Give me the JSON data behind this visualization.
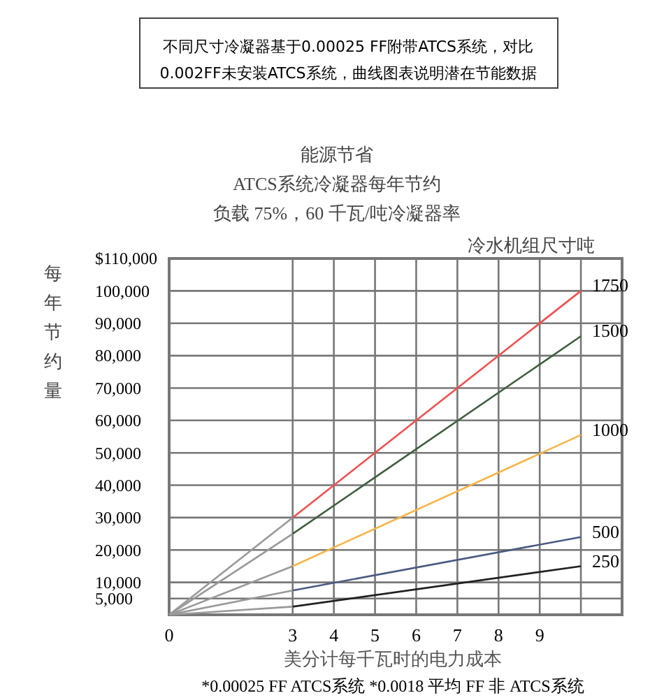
{
  "chart_data": {
    "type": "line",
    "title": "能源节省",
    "subtitle": "ATCS系统冷凝器每年节约",
    "xlabel": "美分计每千瓦时的电力成本",
    "ylabel": "每年节约量",
    "legend_title": "冷水机组尺寸吨",
    "annotations": [
      "不同尺寸冷凝器基于0.00025 FF附带ATCS系统，对比0.002FF未安装ATCS系统，曲线图表说明潜在节能数据",
      "负载 75%，60 千瓦/吨冷凝器率",
      "*0.00025 FF ATCS系统  *0.0018 平均 FF  非 ATCS系统"
    ],
    "xlim": [
      0,
      11
    ],
    "xticks": [
      0,
      3,
      4,
      5,
      6,
      7,
      8,
      9,
      {
        "value": 10,
        "label": null
      }
    ],
    "ylim": [
      0,
      110000
    ],
    "yticks": [
      {
        "value": 0,
        "label": null
      },
      {
        "value": 5000,
        "label": "5,000"
      },
      {
        "value": 10000,
        "label": "10,000"
      },
      {
        "value": 20000,
        "label": "20,000"
      },
      {
        "value": 30000,
        "label": "30,000"
      },
      {
        "value": 40000,
        "label": "40,000"
      },
      {
        "value": 50000,
        "label": "50,000"
      },
      {
        "value": 60000,
        "label": "60,000"
      },
      {
        "value": 70000,
        "label": "70,000"
      },
      {
        "value": 80000,
        "label": "80,000"
      },
      {
        "value": 90000,
        "label": "90,000"
      },
      {
        "value": 100000,
        "label": "100,000"
      },
      {
        "value": 110000,
        "label": "$110,000"
      }
    ],
    "grid": true,
    "legend": false,
    "marker": "none",
    "line_style": "solid",
    "series": [
      {
        "color": "#999999",
        "x": [
          0,
          3
        ],
        "values": [
          0,
          30000
        ]
      },
      {
        "color": "#999999",
        "x": [
          0,
          3
        ],
        "values": [
          0,
          25000
        ]
      },
      {
        "color": "#999999",
        "x": [
          0,
          3
        ],
        "values": [
          0,
          15000
        ]
      },
      {
        "color": "#999999",
        "x": [
          0,
          3
        ],
        "values": [
          0,
          7500
        ]
      },
      {
        "color": "#999999",
        "x": [
          0,
          3
        ],
        "values": [
          0,
          2500
        ]
      },
      {
        "name": "1750",
        "color": "#f05050",
        "x": [
          3,
          10
        ],
        "values": [
          30000,
          100000
        ]
      },
      {
        "name": "1500",
        "color": "#3e5e3e",
        "x": [
          3,
          10
        ],
        "values": [
          25000,
          86000
        ]
      },
      {
        "name": "1000",
        "color": "#f7b54a",
        "x": [
          3,
          10
        ],
        "values": [
          15000,
          55500
        ]
      },
      {
        "name": "500",
        "color": "#4a5a80",
        "x": [
          3,
          10
        ],
        "values": [
          7500,
          24000
        ]
      },
      {
        "name": "250",
        "color": "#202020",
        "x": [
          3,
          10
        ],
        "values": [
          2500,
          15000
        ]
      }
    ]
  }
}
